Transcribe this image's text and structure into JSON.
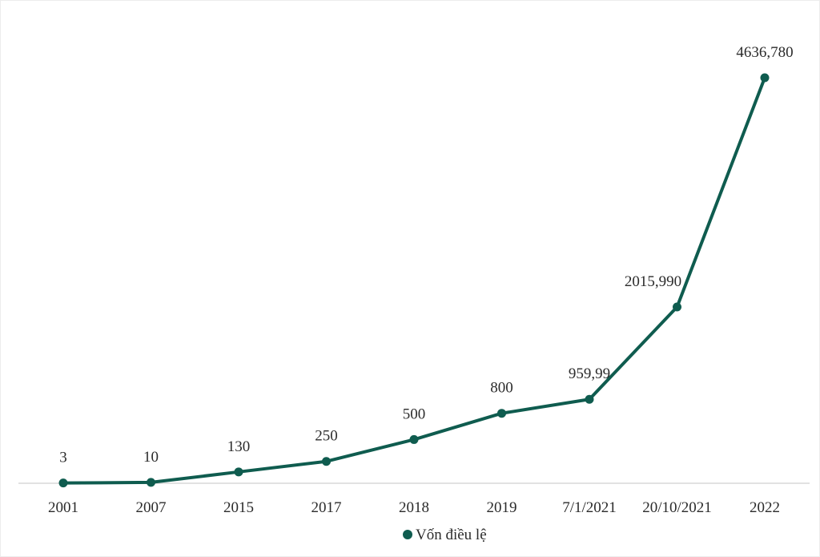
{
  "chart_data": {
    "type": "line",
    "title": "",
    "xlabel": "",
    "ylabel": "",
    "categories": [
      "2001",
      "2007",
      "2015",
      "2017",
      "2018",
      "2019",
      "7/1/2021",
      "20/10/2021",
      "2022"
    ],
    "series": [
      {
        "name": "Vốn điều lệ",
        "values": [
          3,
          10,
          130,
          250,
          500,
          800,
          959.99,
          2015.99,
          4636.78
        ],
        "data_labels": [
          "3",
          "10",
          "130",
          "250",
          "500",
          "800",
          "959,99",
          "2015,990",
          "4636,780"
        ],
        "color": "#0f5c4f"
      }
    ],
    "ylim": [
      0,
      4700
    ],
    "grid": false,
    "legend": "bottom-center"
  }
}
